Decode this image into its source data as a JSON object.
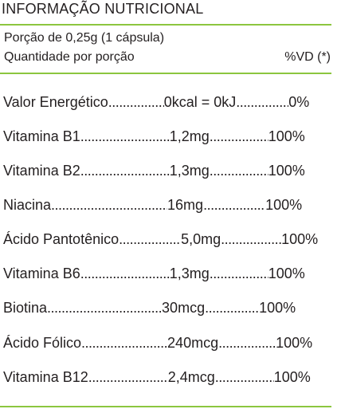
{
  "header": {
    "title": "INFORMAÇÃO NUTRICIONAL"
  },
  "serving": {
    "portion": "Porção de 0,25g (1 cápsula)",
    "quantity_label": "Quantidade por porção",
    "vd_label": "%VD (*)"
  },
  "nutrients": [
    {
      "name": "Valor Energético",
      "amount": "0kcal = 0kJ",
      "vd": "0%"
    },
    {
      "name": "Vitamina B1",
      "amount": "1,2mg",
      "vd": "100%"
    },
    {
      "name": "Vitamina B2",
      "amount": "1,3mg",
      "vd": "100%"
    },
    {
      "name": "Niacina",
      "amount": "16mg",
      "vd": "100%"
    },
    {
      "name": "Ácido Pantotênico",
      "amount": "5,0mg",
      "vd": "100%"
    },
    {
      "name": "Vitamina B6",
      "amount": "1,3mg",
      "vd": "100%"
    },
    {
      "name": "Biotina",
      "amount": "30mcg",
      "vd": "100%"
    },
    {
      "name": "Ácido Fólico",
      "amount": "240mcg",
      "vd": "100%"
    },
    {
      "name": "Vitamina B12",
      "amount": "2,4mcg",
      "vd": "100%"
    }
  ],
  "colors": {
    "rule": "#8cc63f",
    "text": "#231f20"
  }
}
